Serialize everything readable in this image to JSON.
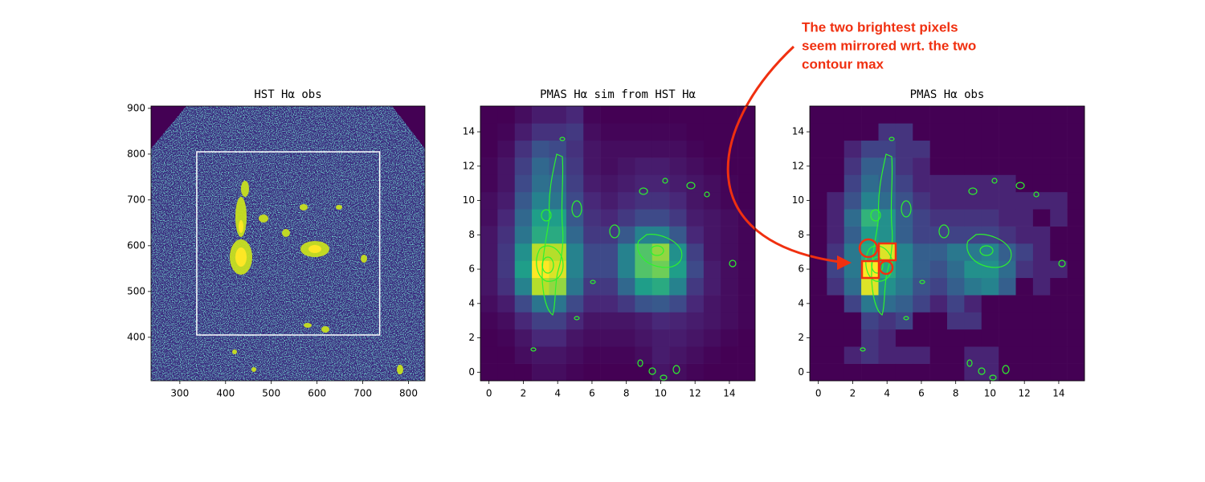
{
  "chart_data": [
    {
      "type": "image",
      "title": "HST Hα obs",
      "xlim": [
        237,
        836
      ],
      "ylim": [
        305,
        905
      ],
      "xticks": [
        300,
        400,
        500,
        600,
        700,
        800
      ],
      "yticks": [
        400,
        500,
        600,
        700,
        800,
        900
      ],
      "box": {
        "x": [
          337,
          737
        ],
        "y": [
          405,
          805
        ]
      },
      "box_color": "#ffffff"
    },
    {
      "type": "heatmap",
      "title": "PMAS Hα sim from HST Hα",
      "xlim": [
        -0.5,
        15.5
      ],
      "ylim": [
        -0.5,
        15.5
      ],
      "xticks": [
        0,
        2,
        4,
        6,
        8,
        10,
        12,
        14
      ],
      "yticks": [
        0,
        2,
        4,
        6,
        8,
        10,
        12,
        14
      ],
      "z": [
        [
          0.05,
          0.05,
          0.05,
          0.08,
          0.08,
          0.06,
          0.05,
          0.05,
          0.05,
          0.05,
          0.1,
          0.08,
          0.06,
          0.05,
          0.05,
          0.05
        ],
        [
          0.05,
          0.05,
          0.08,
          0.1,
          0.1,
          0.08,
          0.06,
          0.06,
          0.06,
          0.08,
          0.12,
          0.1,
          0.08,
          0.06,
          0.05,
          0.05
        ],
        [
          0.05,
          0.06,
          0.1,
          0.15,
          0.15,
          0.1,
          0.08,
          0.08,
          0.08,
          0.1,
          0.12,
          0.12,
          0.1,
          0.08,
          0.06,
          0.05
        ],
        [
          0.06,
          0.08,
          0.15,
          0.22,
          0.22,
          0.15,
          0.1,
          0.1,
          0.1,
          0.12,
          0.15,
          0.14,
          0.12,
          0.1,
          0.08,
          0.06
        ],
        [
          0.08,
          0.12,
          0.25,
          0.4,
          0.4,
          0.25,
          0.15,
          0.15,
          0.2,
          0.28,
          0.3,
          0.25,
          0.15,
          0.1,
          0.08,
          0.06
        ],
        [
          0.1,
          0.18,
          0.45,
          0.85,
          0.8,
          0.4,
          0.2,
          0.2,
          0.35,
          0.55,
          0.6,
          0.45,
          0.2,
          0.12,
          0.08,
          0.06
        ],
        [
          0.1,
          0.2,
          0.55,
          0.95,
          0.9,
          0.45,
          0.25,
          0.25,
          0.45,
          0.7,
          0.75,
          0.55,
          0.25,
          0.12,
          0.08,
          0.06
        ],
        [
          0.1,
          0.2,
          0.5,
          0.85,
          0.85,
          0.45,
          0.25,
          0.25,
          0.45,
          0.7,
          0.8,
          0.5,
          0.22,
          0.1,
          0.08,
          0.06
        ],
        [
          0.1,
          0.18,
          0.4,
          0.6,
          0.6,
          0.35,
          0.2,
          0.2,
          0.3,
          0.45,
          0.45,
          0.3,
          0.15,
          0.1,
          0.08,
          0.06
        ],
        [
          0.08,
          0.15,
          0.35,
          0.55,
          0.55,
          0.3,
          0.18,
          0.15,
          0.2,
          0.25,
          0.25,
          0.2,
          0.12,
          0.1,
          0.08,
          0.06
        ],
        [
          0.08,
          0.12,
          0.3,
          0.45,
          0.4,
          0.25,
          0.15,
          0.12,
          0.15,
          0.18,
          0.18,
          0.15,
          0.1,
          0.08,
          0.06,
          0.05
        ],
        [
          0.06,
          0.1,
          0.25,
          0.38,
          0.35,
          0.22,
          0.12,
          0.1,
          0.12,
          0.14,
          0.14,
          0.12,
          0.1,
          0.08,
          0.06,
          0.05
        ],
        [
          0.06,
          0.1,
          0.22,
          0.35,
          0.3,
          0.2,
          0.1,
          0.08,
          0.1,
          0.12,
          0.12,
          0.1,
          0.08,
          0.06,
          0.05,
          0.05
        ],
        [
          0.05,
          0.08,
          0.18,
          0.28,
          0.25,
          0.18,
          0.1,
          0.08,
          0.08,
          0.08,
          0.08,
          0.08,
          0.06,
          0.05,
          0.05,
          0.05
        ],
        [
          0.05,
          0.06,
          0.12,
          0.18,
          0.18,
          0.2,
          0.08,
          0.06,
          0.06,
          0.06,
          0.06,
          0.06,
          0.05,
          0.05,
          0.05,
          0.05
        ],
        [
          0.05,
          0.05,
          0.08,
          0.12,
          0.12,
          0.15,
          0.06,
          0.05,
          0.05,
          0.05,
          0.05,
          0.05,
          0.05,
          0.05,
          0.05,
          0.05
        ]
      ]
    },
    {
      "type": "heatmap",
      "title": "PMAS Hα obs",
      "xlim": [
        -0.5,
        15.5
      ],
      "ylim": [
        -0.5,
        15.5
      ],
      "xticks": [
        0,
        2,
        4,
        6,
        8,
        10,
        12,
        14
      ],
      "yticks": [
        0,
        2,
        4,
        6,
        8,
        10,
        12,
        14
      ],
      "z": [
        [
          0,
          0,
          0,
          0,
          0,
          0,
          0,
          0,
          0,
          0.1,
          0.1,
          0,
          0,
          0,
          0,
          0
        ],
        [
          0,
          0,
          0.1,
          0.15,
          0.1,
          0.1,
          0.1,
          0,
          0,
          0.1,
          0.1,
          0,
          0,
          0,
          0,
          0
        ],
        [
          0,
          0,
          0,
          0.15,
          0.1,
          0,
          0,
          0,
          0,
          0,
          0,
          0,
          0,
          0,
          0,
          0
        ],
        [
          0,
          0,
          0,
          0.2,
          0.15,
          0.2,
          0,
          0,
          0.15,
          0.15,
          0,
          0,
          0,
          0,
          0,
          0
        ],
        [
          0,
          0,
          0.2,
          0.4,
          0.35,
          0.3,
          0.2,
          0.1,
          0.2,
          0.1,
          0,
          0,
          0,
          0,
          0,
          0
        ],
        [
          0,
          0.15,
          0.35,
          0.95,
          0.5,
          0.4,
          0.25,
          0.2,
          0.3,
          0.4,
          0.45,
          0.3,
          0,
          0.1,
          0,
          0
        ],
        [
          0,
          0.2,
          0.4,
          1.0,
          0.6,
          0.45,
          0.3,
          0.25,
          0.35,
          0.5,
          0.5,
          0.35,
          0.15,
          0.1,
          0.1,
          0
        ],
        [
          0,
          0.15,
          0.4,
          0.6,
          0.95,
          0.45,
          0.3,
          0.3,
          0.4,
          0.4,
          0.45,
          0.3,
          0.2,
          0.1,
          0,
          0
        ],
        [
          0,
          0.1,
          0.3,
          0.55,
          0.5,
          0.3,
          0.2,
          0.2,
          0.2,
          0.2,
          0.2,
          0.15,
          0.1,
          0.1,
          0,
          0
        ],
        [
          0,
          0.1,
          0.35,
          0.65,
          0.5,
          0.3,
          0.2,
          0.15,
          0.15,
          0.15,
          0.15,
          0.1,
          0.1,
          0,
          0.1,
          0
        ],
        [
          0,
          0.1,
          0.25,
          0.45,
          0.35,
          0.25,
          0.15,
          0.1,
          0.1,
          0.1,
          0.1,
          0.1,
          0.1,
          0.1,
          0.1,
          0
        ],
        [
          0,
          0,
          0.2,
          0.35,
          0.3,
          0.2,
          0.1,
          0.1,
          0.1,
          0.1,
          0.1,
          0.1,
          0,
          0,
          0,
          0
        ],
        [
          0,
          0,
          0.15,
          0.3,
          0.3,
          0.15,
          0.1,
          0,
          0,
          0,
          0,
          0,
          0,
          0,
          0,
          0
        ],
        [
          0,
          0,
          0.1,
          0.2,
          0.2,
          0.15,
          0.15,
          0,
          0,
          0,
          0,
          0,
          0,
          0,
          0,
          0
        ],
        [
          0,
          0,
          0,
          0,
          0.15,
          0.15,
          0,
          0,
          0,
          0,
          0,
          0,
          0,
          0,
          0,
          0
        ],
        [
          0,
          0,
          0,
          0,
          0,
          0,
          0,
          0,
          0,
          0,
          0,
          0,
          0,
          0,
          0,
          0
        ]
      ],
      "annotation": [
        "The two brightest pixels",
        "seem mirrored wrt. the two",
        "contour max"
      ],
      "annotation_color": "#f03010"
    }
  ]
}
